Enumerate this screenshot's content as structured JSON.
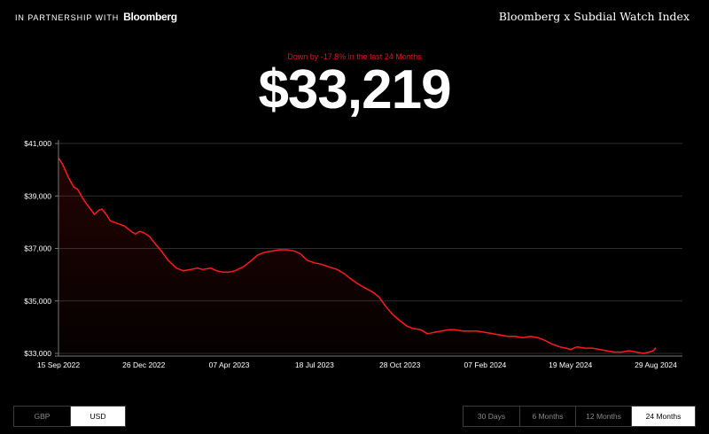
{
  "header": {
    "partner_label": "IN PARTNERSHIP WITH",
    "partner_brand": "Bloomberg",
    "index_title": "Bloomberg x Subdial Watch Index"
  },
  "summary": {
    "change_text": "Down by -17.8% in the last 24 Months",
    "price": "$33,219"
  },
  "currency_toggle": [
    {
      "label": "GBP",
      "active": false
    },
    {
      "label": "USD",
      "active": true
    }
  ],
  "period_toggle": [
    {
      "label": "30 Days",
      "active": false
    },
    {
      "label": "6 Months",
      "active": false
    },
    {
      "label": "12 Months",
      "active": false
    },
    {
      "label": "24 Months",
      "active": true
    }
  ],
  "colors": {
    "line": "#ff1a1a",
    "grid": "#2e2e2e",
    "axis_text": "#ffffff"
  },
  "chart_data": {
    "type": "area",
    "title": "",
    "xlabel": "",
    "ylabel": "",
    "ylim": [
      33000,
      41000
    ],
    "y_ticks": [
      {
        "value": 33000,
        "label": "$33,000"
      },
      {
        "value": 35000,
        "label": "$35,000"
      },
      {
        "value": 37000,
        "label": "$37,000"
      },
      {
        "value": 39000,
        "label": "$39,000"
      },
      {
        "value": 41000,
        "label": "$41,000"
      }
    ],
    "x_range": [
      "2022-09-15",
      "2024-08-29"
    ],
    "x_ticks": [
      {
        "date": "2022-09-15",
        "label": "15 Sep 2022"
      },
      {
        "date": "2022-12-26",
        "label": "26 Dec 2022"
      },
      {
        "date": "2023-04-07",
        "label": "07 Apr 2023"
      },
      {
        "date": "2023-07-18",
        "label": "18 Jul 2023"
      },
      {
        "date": "2023-10-28",
        "label": "28 Oct 2023"
      },
      {
        "date": "2024-02-07",
        "label": "07 Feb 2024"
      },
      {
        "date": "2024-05-19",
        "label": "19 May 2024"
      },
      {
        "date": "2024-08-29",
        "label": "29 Aug 2024"
      }
    ],
    "grid": true,
    "legend": "none",
    "series": [
      {
        "points": [
          [
            "2022-09-15",
            40450
          ],
          [
            "2022-09-20",
            40200
          ],
          [
            "2022-09-27",
            39700
          ],
          [
            "2022-10-03",
            39350
          ],
          [
            "2022-10-08",
            39250
          ],
          [
            "2022-10-14",
            38900
          ],
          [
            "2022-10-22",
            38550
          ],
          [
            "2022-10-28",
            38300
          ],
          [
            "2022-11-02",
            38450
          ],
          [
            "2022-11-06",
            38500
          ],
          [
            "2022-11-11",
            38300
          ],
          [
            "2022-11-16",
            38050
          ],
          [
            "2022-11-25",
            37950
          ],
          [
            "2022-12-03",
            37850
          ],
          [
            "2022-12-11",
            37650
          ],
          [
            "2022-12-16",
            37550
          ],
          [
            "2022-12-21",
            37650
          ],
          [
            "2022-12-26",
            37600
          ],
          [
            "2023-01-02",
            37450
          ],
          [
            "2023-01-08",
            37200
          ],
          [
            "2023-01-16",
            36900
          ],
          [
            "2023-01-24",
            36550
          ],
          [
            "2023-02-03",
            36250
          ],
          [
            "2023-02-11",
            36150
          ],
          [
            "2023-02-20",
            36200
          ],
          [
            "2023-02-28",
            36250
          ],
          [
            "2023-03-06",
            36200
          ],
          [
            "2023-03-16",
            36250
          ],
          [
            "2023-03-23",
            36150
          ],
          [
            "2023-03-30",
            36100
          ],
          [
            "2023-04-07",
            36100
          ],
          [
            "2023-04-14",
            36150
          ],
          [
            "2023-04-24",
            36300
          ],
          [
            "2023-05-02",
            36500
          ],
          [
            "2023-05-11",
            36750
          ],
          [
            "2023-05-19",
            36850
          ],
          [
            "2023-05-28",
            36900
          ],
          [
            "2023-06-06",
            36950
          ],
          [
            "2023-06-15",
            36950
          ],
          [
            "2023-06-24",
            36900
          ],
          [
            "2023-07-01",
            36800
          ],
          [
            "2023-07-09",
            36550
          ],
          [
            "2023-07-18",
            36450
          ],
          [
            "2023-07-26",
            36400
          ],
          [
            "2023-08-04",
            36300
          ],
          [
            "2023-08-14",
            36200
          ],
          [
            "2023-08-22",
            36050
          ],
          [
            "2023-08-30",
            35850
          ],
          [
            "2023-09-08",
            35650
          ],
          [
            "2023-09-16",
            35500
          ],
          [
            "2023-09-25",
            35350
          ],
          [
            "2023-10-03",
            35150
          ],
          [
            "2023-10-11",
            34800
          ],
          [
            "2023-10-19",
            34500
          ],
          [
            "2023-10-28",
            34250
          ],
          [
            "2023-11-05",
            34050
          ],
          [
            "2023-11-13",
            33950
          ],
          [
            "2023-11-22",
            33900
          ],
          [
            "2023-11-30",
            33750
          ],
          [
            "2023-12-08",
            33800
          ],
          [
            "2023-12-17",
            33850
          ],
          [
            "2023-12-25",
            33900
          ],
          [
            "2024-01-02",
            33900
          ],
          [
            "2024-01-11",
            33850
          ],
          [
            "2024-01-19",
            33850
          ],
          [
            "2024-01-28",
            33850
          ],
          [
            "2024-02-07",
            33800
          ],
          [
            "2024-02-16",
            33750
          ],
          [
            "2024-02-25",
            33700
          ],
          [
            "2024-03-05",
            33650
          ],
          [
            "2024-03-14",
            33650
          ],
          [
            "2024-03-23",
            33600
          ],
          [
            "2024-04-01",
            33650
          ],
          [
            "2024-04-10",
            33600
          ],
          [
            "2024-04-18",
            33500
          ],
          [
            "2024-04-27",
            33350
          ],
          [
            "2024-05-06",
            33250
          ],
          [
            "2024-05-14",
            33200
          ],
          [
            "2024-05-19",
            33150
          ],
          [
            "2024-05-27",
            33250
          ],
          [
            "2024-06-05",
            33200
          ],
          [
            "2024-06-14",
            33200
          ],
          [
            "2024-06-23",
            33150
          ],
          [
            "2024-07-01",
            33100
          ],
          [
            "2024-07-10",
            33050
          ],
          [
            "2024-07-19",
            33050
          ],
          [
            "2024-07-28",
            33100
          ],
          [
            "2024-08-06",
            33050
          ],
          [
            "2024-08-14",
            33000
          ],
          [
            "2024-08-21",
            33050
          ],
          [
            "2024-08-26",
            33100
          ],
          [
            "2024-08-29",
            33219
          ]
        ]
      }
    ]
  }
}
